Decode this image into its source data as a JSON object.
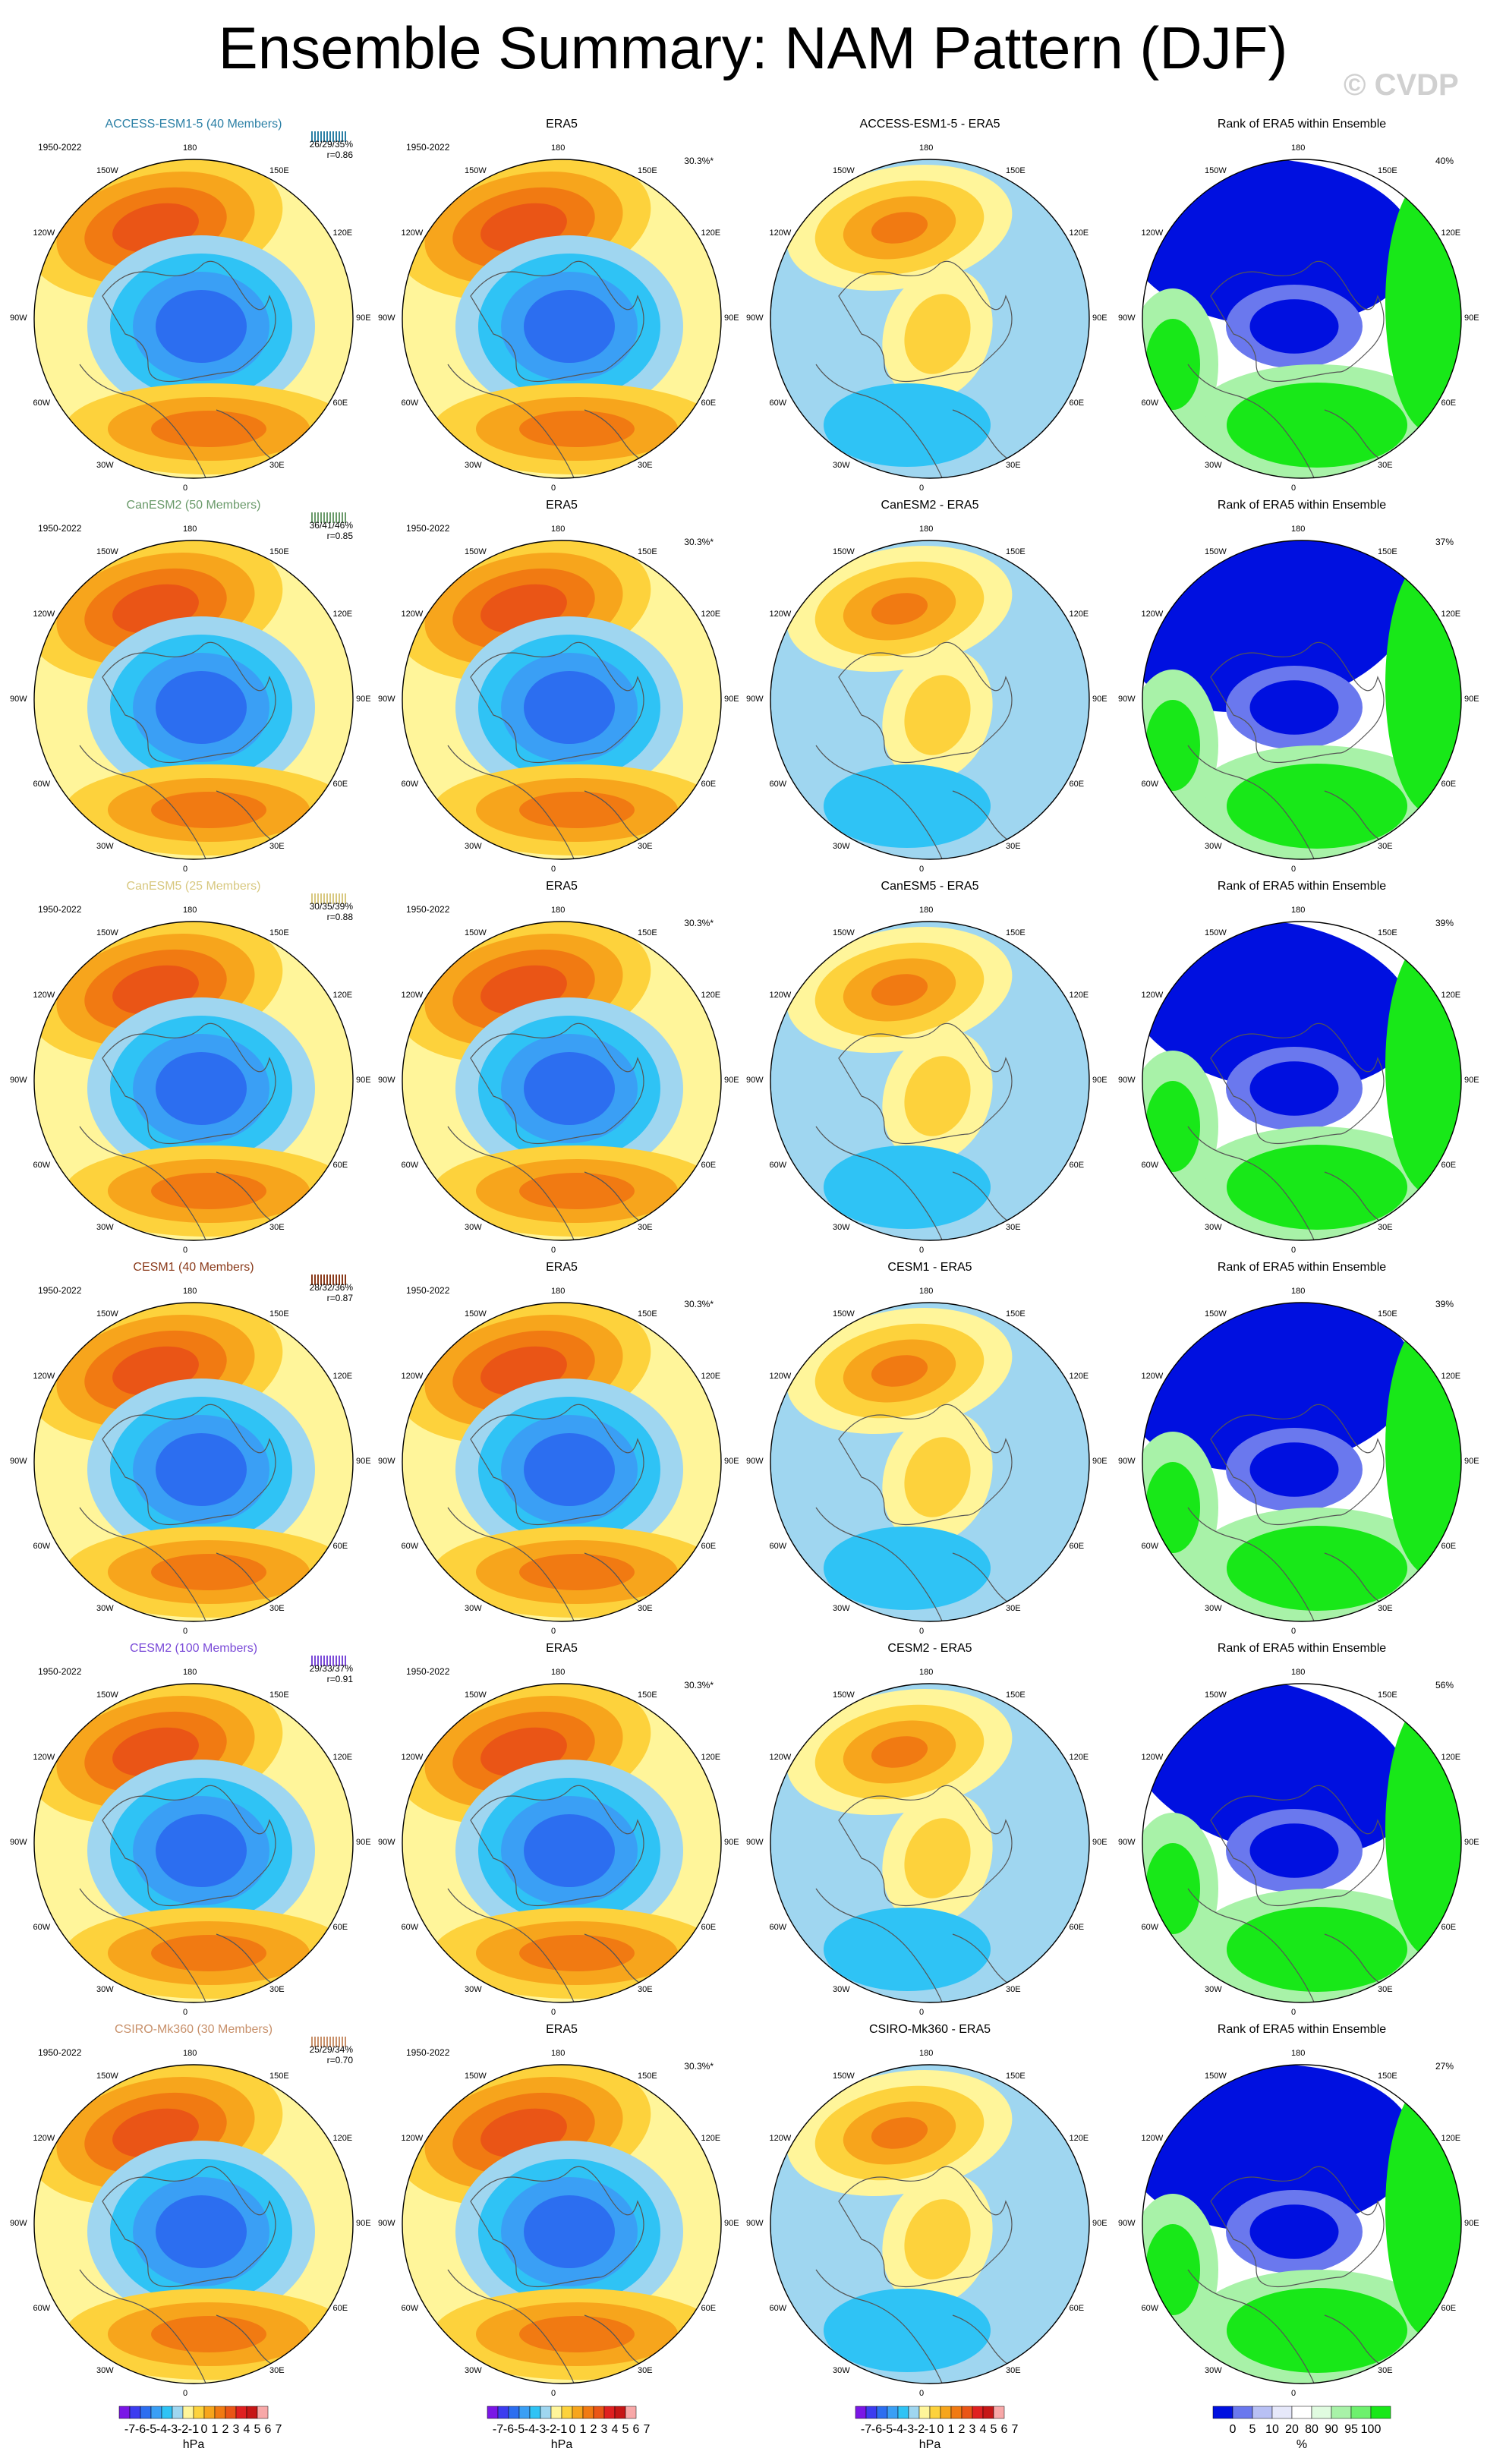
{
  "title": "Ensemble Summary: NAM Pattern (DJF)",
  "watermark": "© CVDP",
  "colors": {
    "neg": [
      "#7a16e6",
      "#3c3cf0",
      "#2c6ef0",
      "#3a9ff5",
      "#2fc3f5",
      "#9fd6f0"
    ],
    "pos": [
      "#fff59a",
      "#fdd23c",
      "#f7a51c",
      "#f17a12",
      "#ea5516",
      "#e02020",
      "#c61616",
      "#f8a8a8"
    ],
    "rank": [
      "#0010e0",
      "#6a78ee",
      "#b8c0f4",
      "#e6e8fa",
      "#ffffff",
      "#e0fbe0",
      "#a8f2a8",
      "#6ef06e",
      "#18e818"
    ]
  },
  "lon_labels": [
    "180",
    "150E",
    "120E",
    "90E",
    "60E",
    "30E",
    "0",
    "30W",
    "60W",
    "90W",
    "120W",
    "150W"
  ],
  "colorbar": {
    "labels": [
      "-7",
      "-6",
      "-5",
      "-4",
      "-3",
      "-2",
      "-1",
      "0",
      "1",
      "2",
      "3",
      "4",
      "5",
      "6",
      "7"
    ],
    "unit": "hPa"
  },
  "rank_colorbar": {
    "labels": [
      "0",
      "5",
      "10",
      "20",
      "80",
      "90",
      "95",
      "100"
    ],
    "unit": "%"
  },
  "chart_data": [
    {
      "type": "heatmap",
      "row": 1,
      "column": 1,
      "title": "ACCESS-ESM1-5 (40 Members)",
      "title_color": "#2a7fa5",
      "period": "1950-2022",
      "pct_labels": "26/29/35%",
      "r_label": "r=0.86",
      "diff_title": "ACCESS-ESM1-5 - ERA5",
      "era5_title": "ERA5",
      "era5_period": "1950-2022",
      "era5_pct": "30.3%*",
      "rank_title": "Rank of ERA5 within Ensemble",
      "rank_pct": "40%"
    },
    {
      "type": "heatmap",
      "row": 2,
      "column": 1,
      "title": "CanESM2 (50 Members)",
      "title_color": "#6a9a6a",
      "period": "1950-2022",
      "pct_labels": "36/41/46%",
      "r_label": "r=0.85",
      "diff_title": "CanESM2 - ERA5",
      "era5_title": "ERA5",
      "era5_period": "1950-2022",
      "era5_pct": "30.3%*",
      "rank_title": "Rank of ERA5 within Ensemble",
      "rank_pct": "37%"
    },
    {
      "type": "heatmap",
      "row": 3,
      "column": 1,
      "title": "CanESM5 (25 Members)",
      "title_color": "#d8c880",
      "period": "1950-2022",
      "pct_labels": "30/35/39%",
      "r_label": "r=0.88",
      "diff_title": "CanESM5 - ERA5",
      "era5_title": "ERA5",
      "era5_period": "1950-2022",
      "era5_pct": "30.3%*",
      "rank_title": "Rank of ERA5 within Ensemble",
      "rank_pct": "39%"
    },
    {
      "type": "heatmap",
      "row": 4,
      "column": 1,
      "title": "CESM1 (40 Members)",
      "title_color": "#8a3a1a",
      "period": "1950-2022",
      "pct_labels": "28/32/36%",
      "r_label": "r=0.87",
      "diff_title": "CESM1 - ERA5",
      "era5_title": "ERA5",
      "era5_period": "1950-2022",
      "era5_pct": "30.3%*",
      "rank_title": "Rank of ERA5 within Ensemble",
      "rank_pct": "39%"
    },
    {
      "type": "heatmap",
      "row": 5,
      "column": 1,
      "title": "CESM2 (100 Members)",
      "title_color": "#7a4ad8",
      "period": "1950-2022",
      "pct_labels": "29/33/37%",
      "r_label": "r=0.91",
      "diff_title": "CESM2 - ERA5",
      "era5_title": "ERA5",
      "era5_period": "1950-2022",
      "era5_pct": "30.3%*",
      "rank_title": "Rank of ERA5 within Ensemble",
      "rank_pct": "56%"
    },
    {
      "type": "heatmap",
      "row": 6,
      "column": 1,
      "title": "CSIRO-Mk360 (30 Members)",
      "title_color": "#c8906a",
      "period": "1950-2022",
      "pct_labels": "25/29/34%",
      "r_label": "r=0.70",
      "diff_title": "CSIRO-Mk360 - ERA5",
      "era5_title": "ERA5",
      "era5_period": "1950-2022",
      "era5_pct": "30.3%*",
      "rank_title": "Rank of ERA5 within Ensemble",
      "rank_pct": "27%"
    }
  ]
}
